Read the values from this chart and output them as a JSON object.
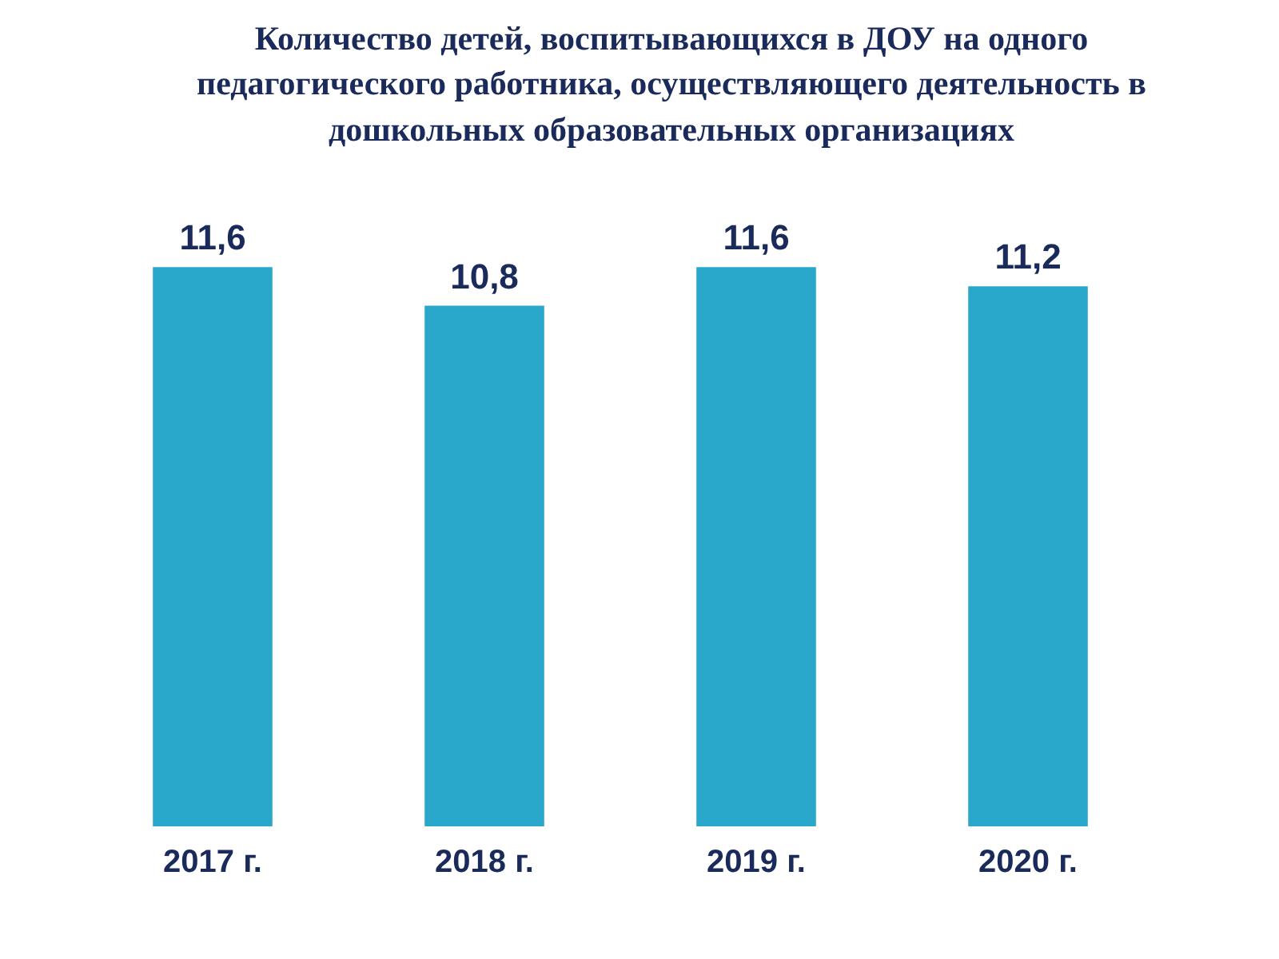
{
  "chart_data": {
    "type": "bar",
    "title": "Количество детей, воспитывающихся в ДОУ на одного педагогического работника, осуществляющего деятельность в дошкольных образовательных организациях",
    "categories": [
      "2017 г.",
      "2018 г.",
      "2019 г.",
      "2020 г."
    ],
    "values": [
      11.6,
      10.8,
      11.6,
      11.2
    ],
    "value_labels": [
      "11,6",
      "10,8",
      "11,6",
      "11,2"
    ],
    "color": "#2aa8cc",
    "tick_labels": "x",
    "grid": false,
    "legend": false
  }
}
